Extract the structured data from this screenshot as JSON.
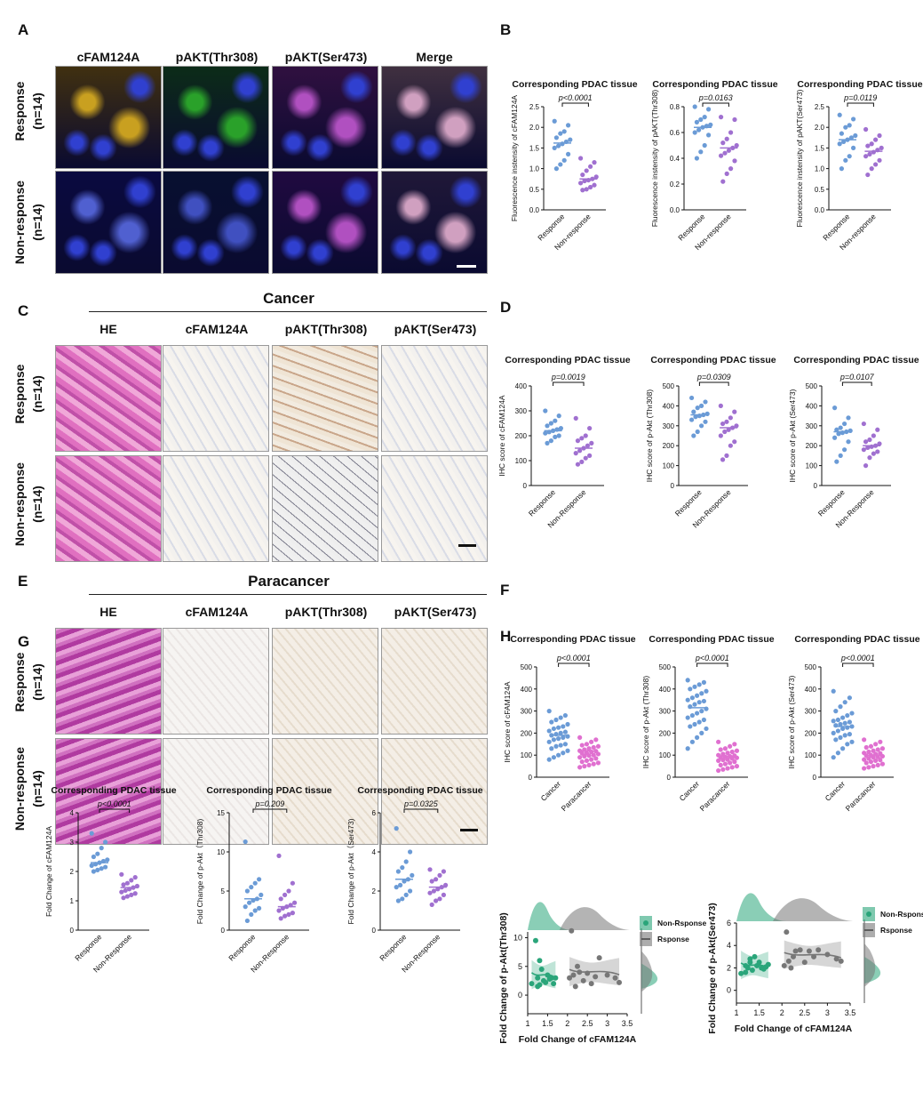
{
  "panel_letters": [
    "A",
    "B",
    "C",
    "D",
    "E",
    "F",
    "G",
    "H"
  ],
  "panelA": {
    "columns": [
      "cFAM124A",
      "pAKT(Thr308)",
      "pAKT(Ser473)",
      "Merge"
    ],
    "rows": [
      {
        "group": "Response",
        "n": "(n=14)"
      },
      {
        "group": "Non-response",
        "n": "(n=14)"
      }
    ],
    "tint_colors": [
      "#c9a020",
      "#2aa12a",
      "#b050c0",
      "#d0a0c0"
    ]
  },
  "panelC": {
    "section_title": "Cancer",
    "columns": [
      "HE",
      "cFAM124A",
      "pAKT(Thr308)",
      "pAKT(Ser473)"
    ],
    "rows": [
      {
        "group": "Response",
        "n": "(n=14)"
      },
      {
        "group": "Non-response",
        "n": "(n=14)"
      }
    ]
  },
  "panelE": {
    "section_title": "Paracancer",
    "columns": [
      "HE",
      "cFAM124A",
      "pAKT(Thr308)",
      "pAKT(Ser473)"
    ],
    "rows": [
      {
        "group": "Response",
        "n": "(n=14)"
      },
      {
        "group": "Non-response",
        "n": "(n=14)"
      }
    ]
  },
  "colors": {
    "response": "#6b9bd6",
    "nonresponse": "#a070d0",
    "cancer": "#6b9bd6",
    "paracancer": "#e070d0",
    "green": "#2aa57a",
    "gray": "#777777"
  },
  "chart_data": [
    {
      "id": "B1",
      "type": "scatter",
      "title": "Corresponding PDAC tissue",
      "ylabel": "Fluorescence instensity of cFAM124A",
      "categories": [
        "Response",
        "Non-response"
      ],
      "ylim": [
        0,
        2.5
      ],
      "yticks": [
        0.0,
        0.5,
        1.0,
        1.5,
        2.0,
        2.5
      ],
      "pvalue": "p<0.0001",
      "series": [
        {
          "name": "Response",
          "values": [
            2.15,
            2.05,
            1.9,
            1.85,
            1.75,
            1.7,
            1.65,
            1.6,
            1.55,
            1.5,
            1.35,
            1.2,
            1.1,
            1.0
          ],
          "mean": 1.62
        },
        {
          "name": "Non-response",
          "values": [
            1.25,
            1.15,
            1.05,
            0.95,
            0.85,
            0.8,
            0.75,
            0.72,
            0.7,
            0.65,
            0.6,
            0.55,
            0.5,
            0.48
          ],
          "mean": 0.75
        }
      ]
    },
    {
      "id": "B2",
      "type": "scatter",
      "title": "Corresponding PDAC tissue",
      "ylabel": "Fluorescence instensity of pAKT(Thr308)",
      "categories": [
        "Response",
        "Non-response"
      ],
      "ylim": [
        0,
        0.8
      ],
      "yticks": [
        0.0,
        0.2,
        0.4,
        0.6,
        0.8
      ],
      "pvalue": "p=0.0163",
      "series": [
        {
          "name": "Response",
          "values": [
            0.8,
            0.78,
            0.72,
            0.7,
            0.68,
            0.66,
            0.65,
            0.64,
            0.62,
            0.6,
            0.58,
            0.5,
            0.45,
            0.4
          ],
          "mean": 0.64
        },
        {
          "name": "Non-response",
          "values": [
            0.72,
            0.7,
            0.6,
            0.55,
            0.52,
            0.5,
            0.48,
            0.46,
            0.44,
            0.42,
            0.38,
            0.32,
            0.28,
            0.22
          ],
          "mean": 0.48
        }
      ]
    },
    {
      "id": "B3",
      "type": "scatter",
      "title": "Corresponding PDAC tissue",
      "ylabel": "Fluorescence instensity of pAKT(Ser473)",
      "categories": [
        "Response",
        "Non-response"
      ],
      "ylim": [
        0,
        2.5
      ],
      "yticks": [
        0.0,
        0.5,
        1.0,
        1.5,
        2.0,
        2.5
      ],
      "pvalue": "p=0.0119",
      "series": [
        {
          "name": "Response",
          "values": [
            2.3,
            2.2,
            2.05,
            2.0,
            1.85,
            1.8,
            1.75,
            1.7,
            1.65,
            1.6,
            1.5,
            1.3,
            1.2,
            1.0
          ],
          "mean": 1.7
        },
        {
          "name": "Non-response",
          "values": [
            1.95,
            1.8,
            1.7,
            1.6,
            1.55,
            1.5,
            1.45,
            1.4,
            1.35,
            1.3,
            1.2,
            1.1,
            1.0,
            0.85
          ],
          "mean": 1.42
        }
      ]
    },
    {
      "id": "D1",
      "type": "scatter",
      "title": "Corresponding PDAC tissue",
      "ylabel": "IHC score of cFAM124A",
      "categories": [
        "Response",
        "Non-Response"
      ],
      "ylim": [
        0,
        400
      ],
      "yticks": [
        0,
        100,
        200,
        300,
        400
      ],
      "pvalue": "p=0.0019",
      "series": [
        {
          "name": "Response",
          "values": [
            300,
            280,
            260,
            250,
            240,
            230,
            225,
            220,
            215,
            210,
            200,
            195,
            180,
            170
          ],
          "mean": 220
        },
        {
          "name": "Non-Response",
          "values": [
            270,
            230,
            200,
            190,
            180,
            170,
            160,
            150,
            140,
            130,
            120,
            110,
            95,
            85
          ],
          "mean": 150
        }
      ]
    },
    {
      "id": "D2",
      "type": "scatter",
      "title": "Corresponding PDAC tissue",
      "ylabel": "IHC score of p-Akt (Thr308)",
      "categories": [
        "Response",
        "Non-Response"
      ],
      "ylim": [
        0,
        500
      ],
      "yticks": [
        0,
        100,
        200,
        300,
        400,
        500
      ],
      "pvalue": "p=0.0309",
      "series": [
        {
          "name": "Response",
          "values": [
            440,
            420,
            400,
            390,
            370,
            360,
            355,
            350,
            345,
            330,
            320,
            300,
            270,
            250
          ],
          "mean": 355
        },
        {
          "name": "Non-Response",
          "values": [
            400,
            370,
            340,
            320,
            310,
            300,
            290,
            280,
            270,
            250,
            220,
            200,
            150,
            130
          ],
          "mean": 290
        }
      ]
    },
    {
      "id": "D3",
      "type": "scatter",
      "title": "Corresponding PDAC tissue",
      "ylabel": "IHC score of p-Akt (Ser473)",
      "categories": [
        "Response",
        "Non-Response"
      ],
      "ylim": [
        0,
        500
      ],
      "yticks": [
        0,
        100,
        200,
        300,
        400,
        500
      ],
      "pvalue": "p=0.0107",
      "series": [
        {
          "name": "Response",
          "values": [
            390,
            340,
            310,
            290,
            280,
            275,
            270,
            265,
            260,
            240,
            220,
            180,
            150,
            120
          ],
          "mean": 270
        },
        {
          "name": "Non-Response",
          "values": [
            310,
            280,
            250,
            230,
            220,
            210,
            200,
            195,
            190,
            180,
            170,
            160,
            140,
            100
          ],
          "mean": 200
        }
      ]
    },
    {
      "id": "F1",
      "type": "scatter",
      "title": "Corresponding PDAC tissue",
      "ylabel": "IHC score of cFAM124A",
      "categories": [
        "Cancer",
        "Paracancer"
      ],
      "ylim": [
        0,
        500
      ],
      "yticks": [
        0,
        100,
        200,
        300,
        400,
        500
      ],
      "pvalue": "p<0.0001",
      "series": [
        {
          "name": "Cancer",
          "values": [
            300,
            280,
            270,
            260,
            250,
            240,
            230,
            225,
            220,
            210,
            205,
            200,
            195,
            190,
            185,
            180,
            175,
            170,
            160,
            150,
            145,
            140,
            130,
            120,
            110,
            100,
            90,
            80
          ],
          "mean": 190
        },
        {
          "name": "Paracancer",
          "values": [
            180,
            170,
            160,
            150,
            145,
            140,
            135,
            130,
            125,
            120,
            118,
            115,
            110,
            108,
            105,
            100,
            98,
            95,
            90,
            85,
            80,
            75,
            70,
            65,
            60,
            55,
            50,
            45
          ],
          "mean": 120
        }
      ]
    },
    {
      "id": "F2",
      "type": "scatter",
      "title": "Corresponding PDAC tissue",
      "ylabel": "IHC score of p-Akt (Thr308)",
      "categories": [
        "Cancer",
        "Paracancer"
      ],
      "ylim": [
        0,
        500
      ],
      "yticks": [
        0,
        100,
        200,
        300,
        400,
        500
      ],
      "pvalue": "p<0.0001",
      "series": [
        {
          "name": "Cancer",
          "values": [
            440,
            430,
            420,
            410,
            400,
            390,
            380,
            370,
            360,
            350,
            345,
            340,
            330,
            320,
            310,
            300,
            290,
            280,
            270,
            260,
            250,
            240,
            230,
            220,
            200,
            180,
            160,
            130
          ],
          "mean": 315
        },
        {
          "name": "Paracancer",
          "values": [
            160,
            150,
            140,
            130,
            125,
            120,
            115,
            110,
            105,
            100,
            98,
            95,
            92,
            90,
            88,
            85,
            80,
            78,
            75,
            70,
            65,
            60,
            55,
            50,
            45,
            40,
            35,
            30
          ],
          "mean": 95
        }
      ]
    },
    {
      "id": "F3",
      "type": "scatter",
      "title": "Corresponding PDAC tissue",
      "ylabel": "IHC score of p-Akt (Ser473)",
      "categories": [
        "Cancer",
        "Paracancer"
      ],
      "ylim": [
        0,
        500
      ],
      "yticks": [
        0,
        100,
        200,
        300,
        400,
        500
      ],
      "pvalue": "p<0.0001",
      "series": [
        {
          "name": "Cancer",
          "values": [
            390,
            360,
            340,
            320,
            300,
            290,
            280,
            270,
            260,
            255,
            250,
            245,
            240,
            235,
            230,
            225,
            220,
            210,
            200,
            195,
            190,
            180,
            170,
            160,
            150,
            130,
            110,
            90
          ],
          "mean": 230
        },
        {
          "name": "Paracancer",
          "values": [
            170,
            160,
            150,
            140,
            135,
            130,
            125,
            120,
            115,
            110,
            108,
            105,
            100,
            98,
            95,
            92,
            90,
            85,
            80,
            78,
            75,
            70,
            65,
            60,
            55,
            50,
            45,
            40
          ],
          "mean": 100
        }
      ]
    },
    {
      "id": "G1",
      "type": "scatter",
      "title": "Corresponding PDAC tissue",
      "ylabel": "Fold Change of cFAM124A",
      "categories": [
        "Response",
        "Non-Response"
      ],
      "ylim": [
        0,
        4
      ],
      "yticks": [
        0,
        1,
        2,
        3,
        4
      ],
      "pvalue": "p<0.0001",
      "series": [
        {
          "name": "Response",
          "values": [
            3.3,
            3.0,
            2.8,
            2.6,
            2.5,
            2.4,
            2.35,
            2.3,
            2.25,
            2.2,
            2.15,
            2.1,
            2.05,
            2.0
          ],
          "mean": 2.3
        },
        {
          "name": "Non-Response",
          "values": [
            1.9,
            1.8,
            1.7,
            1.6,
            1.55,
            1.5,
            1.45,
            1.4,
            1.35,
            1.3,
            1.25,
            1.2,
            1.15,
            1.1
          ],
          "mean": 1.45
        }
      ]
    },
    {
      "id": "G2",
      "type": "scatter",
      "title": "Corresponding PDAC tissue",
      "ylabel": "Fold Change of p-Akt（Thr308)",
      "categories": [
        "Response",
        "Non-Response"
      ],
      "ylim": [
        0,
        15
      ],
      "yticks": [
        0,
        5,
        10,
        15
      ],
      "pvalue": "p=0.209",
      "series": [
        {
          "name": "Response",
          "values": [
            11.3,
            6.5,
            6.0,
            5.5,
            5.0,
            4.5,
            4.0,
            3.8,
            3.5,
            3.0,
            2.8,
            2.5,
            2.0,
            1.2
          ],
          "mean": 4.0
        },
        {
          "name": "Non-Response",
          "values": [
            9.5,
            6.0,
            5.0,
            4.5,
            4.0,
            3.5,
            3.2,
            3.0,
            2.8,
            2.5,
            2.2,
            2.0,
            1.8,
            1.5
          ],
          "mean": 3.0
        }
      ]
    },
    {
      "id": "G3",
      "type": "scatter",
      "title": "Corresponding PDAC tissue",
      "ylabel": "Fold Change of p-Akt（Ser473)",
      "categories": [
        "Response",
        "Non-Response"
      ],
      "ylim": [
        0,
        6
      ],
      "yticks": [
        0,
        2,
        4,
        6
      ],
      "pvalue": "p=0.0325",
      "series": [
        {
          "name": "Response",
          "values": [
            5.2,
            4.0,
            3.5,
            3.2,
            3.0,
            2.8,
            2.6,
            2.5,
            2.3,
            2.2,
            2.0,
            1.8,
            1.6,
            1.5
          ],
          "mean": 2.6
        },
        {
          "name": "Non-Response",
          "values": [
            3.1,
            3.0,
            2.8,
            2.6,
            2.5,
            2.3,
            2.2,
            2.1,
            2.0,
            1.9,
            1.8,
            1.6,
            1.5,
            1.3
          ],
          "mean": 2.2
        }
      ]
    },
    {
      "id": "H1",
      "type": "scatter",
      "xlabel": "Fold Change of cFAM124A",
      "ylabel": "Fold Change of p-Akt(Thr308)",
      "xlim": [
        1,
        3.5
      ],
      "xticks": [
        1,
        1.5,
        2,
        2.5,
        3,
        3.5
      ],
      "ylim": [
        -2,
        11
      ],
      "yticks": [
        0,
        5,
        10
      ],
      "legend": [
        "Non-Rsponse",
        "Rsponse"
      ],
      "series": [
        {
          "name": "Non-Rsponse",
          "x": [
            1.1,
            1.2,
            1.25,
            1.3,
            1.35,
            1.4,
            1.45,
            1.5,
            1.55,
            1.6,
            1.65,
            1.7,
            1.3,
            1.25
          ],
          "y": [
            2.0,
            9.5,
            3.0,
            1.8,
            4.5,
            2.5,
            2.2,
            3.5,
            2.8,
            3.0,
            2.0,
            3.0,
            6.0,
            1.5
          ]
        },
        {
          "name": "Rsponse",
          "x": [
            2.05,
            2.1,
            2.15,
            2.25,
            2.3,
            2.4,
            2.5,
            2.6,
            2.7,
            2.8,
            3.0,
            3.2,
            3.3,
            2.2
          ],
          "y": [
            3.0,
            11.2,
            3.5,
            5.0,
            4.0,
            2.5,
            3.8,
            2.0,
            3.2,
            6.5,
            3.5,
            3.0,
            2.2,
            1.5
          ]
        }
      ]
    },
    {
      "id": "H2",
      "type": "scatter",
      "xlabel": "Fold Change of cFAM124A",
      "ylabel": "Fold Change of p-Akt(Ser473)",
      "xlim": [
        1,
        3.5
      ],
      "xticks": [
        1,
        1.5,
        2,
        2.5,
        3,
        3.5
      ],
      "ylim": [
        -0.5,
        6
      ],
      "yticks": [
        0,
        2,
        4,
        6
      ],
      "legend": [
        "Non-Rsponse",
        "Rsponse"
      ],
      "series": [
        {
          "name": "Non-Rsponse",
          "x": [
            1.1,
            1.2,
            1.25,
            1.3,
            1.35,
            1.4,
            1.45,
            1.5,
            1.55,
            1.6,
            1.65,
            1.7,
            1.3,
            1.2
          ],
          "y": [
            1.5,
            2.2,
            2.0,
            2.5,
            1.8,
            3.0,
            2.2,
            2.5,
            2.0,
            1.9,
            2.1,
            2.3,
            2.8,
            1.6
          ]
        },
        {
          "name": "Rsponse",
          "x": [
            2.05,
            2.1,
            2.15,
            2.25,
            2.3,
            2.4,
            2.5,
            2.6,
            2.7,
            2.8,
            3.0,
            3.2,
            3.3,
            2.2
          ],
          "y": [
            2.2,
            5.2,
            2.6,
            3.0,
            3.5,
            3.6,
            2.5,
            3.5,
            3.0,
            3.6,
            3.2,
            2.8,
            2.6,
            2.0
          ]
        }
      ]
    }
  ]
}
